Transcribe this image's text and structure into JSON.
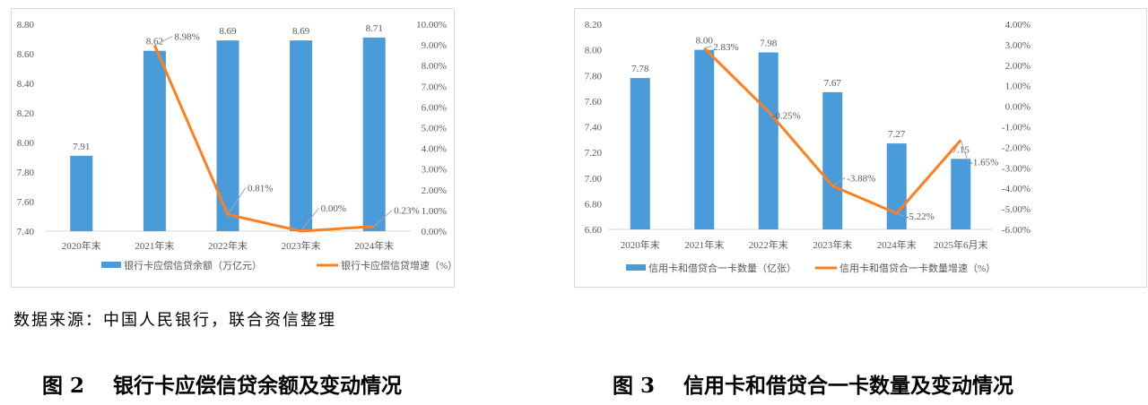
{
  "chart_data": [
    {
      "type": "bar+line",
      "categories": [
        "2020年末",
        "2021年末",
        "2022年末",
        "2023年末",
        "2024年末"
      ],
      "series": [
        {
          "name": "银行卡应偿信贷余额（万亿元）",
          "type": "bar",
          "axis": "left",
          "color": "#4a9bd9",
          "values": [
            7.91,
            8.62,
            8.69,
            8.69,
            8.71
          ],
          "labels": [
            "7.91",
            "8.62",
            "8.69",
            "8.69",
            "8.71"
          ]
        },
        {
          "name": "银行卡应偿信贷增速（%）",
          "type": "line",
          "axis": "right",
          "color": "#ff7f1e",
          "values": [
            null,
            8.98,
            0.81,
            0.0,
            0.23
          ],
          "labels": [
            "",
            "8.98%",
            "0.81%",
            "0.00%",
            "0.23%"
          ]
        }
      ],
      "ylim": [
        7.4,
        8.8
      ],
      "yticks": [
        "7.40",
        "7.60",
        "7.80",
        "8.00",
        "8.20",
        "8.40",
        "8.60",
        "8.80"
      ],
      "y2lim": [
        0,
        10
      ],
      "y2ticks": [
        "0.00%",
        "1.00%",
        "2.00%",
        "3.00%",
        "4.00%",
        "5.00%",
        "6.00%",
        "7.00%",
        "8.00%",
        "9.00%",
        "10.00%"
      ],
      "grid": false,
      "legend": "bottom"
    },
    {
      "type": "bar+line",
      "categories": [
        "2020年末",
        "2021年末",
        "2022年末",
        "2023年末",
        "2024年末",
        "2025年6月末"
      ],
      "series": [
        {
          "name": "信用卡和借贷合一卡数量（亿张）",
          "type": "bar",
          "axis": "left",
          "color": "#4a9bd9",
          "values": [
            7.78,
            8.0,
            7.98,
            7.67,
            7.27,
            7.15
          ],
          "labels": [
            "7.78",
            "8.00",
            "7.98",
            "7.67",
            "7.27",
            "7.15"
          ]
        },
        {
          "name": "信用卡和借贷合一卡数量增速（%）",
          "type": "line",
          "axis": "right",
          "color": "#ff7f1e",
          "values": [
            null,
            2.83,
            -0.25,
            -3.88,
            -5.22,
            -1.65
          ],
          "labels": [
            "",
            "2.83%",
            "-0.25%",
            "-3.88%",
            "-5.22%",
            "-1.65%"
          ]
        }
      ],
      "ylim": [
        6.6,
        8.2
      ],
      "yticks": [
        "6.60",
        "6.80",
        "7.00",
        "7.20",
        "7.40",
        "7.60",
        "7.80",
        "8.00",
        "8.20"
      ],
      "y2lim": [
        -6,
        4
      ],
      "y2ticks": [
        "-6.00%",
        "-5.00%",
        "-4.00%",
        "-3.00%",
        "-2.00%",
        "-1.00%",
        "0.00%",
        "1.00%",
        "2.00%",
        "3.00%",
        "4.00%"
      ],
      "grid": false,
      "legend": "bottom"
    }
  ],
  "source": "数据来源：中国人民银行，联合资信整理",
  "captions": [
    "图 2    银行卡应偿信贷余额及变动情况",
    "图 3    信用卡和借贷合一卡数量及变动情况"
  ]
}
